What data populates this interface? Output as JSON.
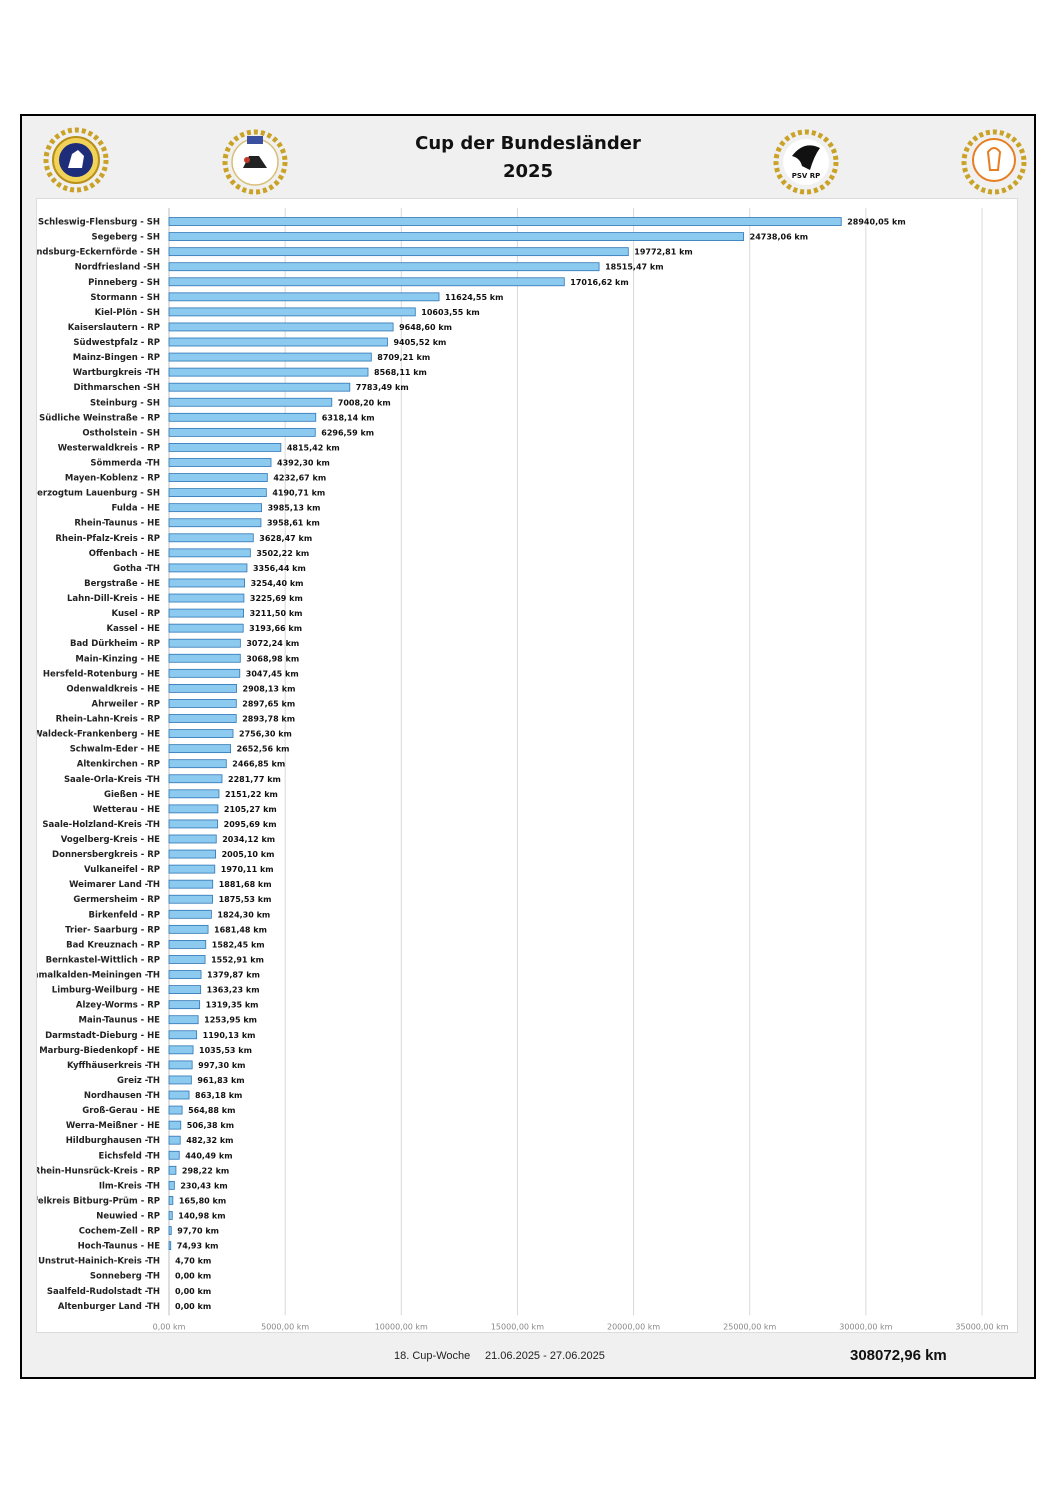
{
  "header": {
    "title": "Cup der Bundesländer",
    "year": "2025"
  },
  "logos": [
    {
      "name": "federation-emblem-icon"
    },
    {
      "name": "carriage-club-emblem-icon"
    },
    {
      "name": "psv-rp-emblem-icon"
    },
    {
      "name": "horse-association-emblem-icon"
    }
  ],
  "footer": {
    "week": "18. Cup-Woche",
    "dates": "21.06.2025 - 27.06.2025",
    "total": "308072,96 km"
  },
  "colors": {
    "bar_fill": "#8ccbef",
    "bar_stroke": "#2e75b6",
    "grid": "#d9d9d9"
  },
  "chart_data": {
    "type": "bar",
    "orientation": "horizontal",
    "xlim": [
      0,
      35000
    ],
    "x_ticks": [
      "0,00 km",
      "5000,00 km",
      "10000,00 km",
      "15000,00 km",
      "20000,00 km",
      "25000,00 km",
      "30000,00 km",
      "35000,00 km"
    ],
    "grid": true,
    "categories": [
      "Schleswig-Flensburg - SH",
      "Segeberg - SH",
      "Rendsburg-Eckernförde - SH",
      "Nordfriesland -SH",
      "Pinneberg - SH",
      "Stormann - SH",
      "Kiel-Plön - SH",
      "Kaiserslautern - RP",
      "Südwestpfalz - RP",
      "Mainz-Bingen - RP",
      "Wartburgkreis -TH",
      "Dithmarschen -SH",
      "Steinburg - SH",
      "Südliche Weinstraße - RP",
      "Ostholstein - SH",
      "Westerwaldkreis - RP",
      "Sömmerda -TH",
      "Mayen-Koblenz - RP",
      "Herzogtum Lauenburg - SH",
      "Fulda - HE",
      "Rhein-Taunus - HE",
      "Rhein-Pfalz-Kreis - RP",
      "Offenbach - HE",
      "Gotha -TH",
      "Bergstraße - HE",
      "Lahn-Dill-Kreis - HE",
      "Kusel - RP",
      "Kassel - HE",
      "Bad Dürkheim - RP",
      "Main-Kinzing - HE",
      "Hersfeld-Rotenburg - HE",
      "Odenwaldkreis - HE",
      "Ahrweiler - RP",
      "Rhein-Lahn-Kreis - RP",
      "Waldeck-Frankenberg - HE",
      "Schwalm-Eder - HE",
      "Altenkirchen - RP",
      "Saale-Orla-Kreis -TH",
      "Gießen - HE",
      "Wetterau - HE",
      "Saale-Holzland-Kreis -TH",
      "Vogelberg-Kreis - HE",
      "Donnersbergkreis - RP",
      "Vulkaneifel - RP",
      "Weimarer Land -TH",
      "Germersheim - RP",
      "Birkenfeld - RP",
      "Trier- Saarburg - RP",
      "Bad Kreuznach - RP",
      "Bernkastel-Wittlich - RP",
      "Schmalkalden-Meiningen -TH",
      "Limburg-Weilburg - HE",
      "Alzey-Worms - RP",
      "Main-Taunus - HE",
      "Darmstadt-Dieburg - HE",
      "Marburg-Biedenkopf - HE",
      "Kyffhäuserkreis -TH",
      "Greiz -TH",
      "Nordhausen -TH",
      "Groß-Gerau - HE",
      "Werra-Meißner - HE",
      "Hildburghausen -TH",
      "Eichsfeld -TH",
      "Rhein-Hunsrück-Kreis - RP",
      "Ilm-Kreis -TH",
      "Eifelkreis Bitburg-Prüm - RP",
      "Neuwied - RP",
      "Cochem-Zell - RP",
      "Hoch-Taunus - HE",
      "Unstrut-Hainich-Kreis -TH",
      "Sonneberg -TH",
      "Saalfeld-Rudolstadt -TH",
      "Altenburger Land -TH"
    ],
    "values": [
      28940.05,
      24738.06,
      19772.81,
      18515.47,
      17016.62,
      11624.55,
      10603.55,
      9648.6,
      9405.52,
      8709.21,
      8568.11,
      7783.49,
      7008.2,
      6318.14,
      6296.59,
      4815.42,
      4392.3,
      4232.67,
      4190.71,
      3985.13,
      3958.61,
      3628.47,
      3502.22,
      3356.44,
      3254.4,
      3225.69,
      3211.5,
      3193.66,
      3072.24,
      3068.98,
      3047.45,
      2908.13,
      2897.65,
      2893.78,
      2756.3,
      2652.56,
      2466.85,
      2281.77,
      2151.22,
      2105.27,
      2095.69,
      2034.12,
      2005.1,
      1970.11,
      1881.68,
      1875.53,
      1824.3,
      1681.48,
      1582.45,
      1552.91,
      1379.87,
      1363.23,
      1319.35,
      1253.95,
      1190.13,
      1035.53,
      997.3,
      961.83,
      863.18,
      564.88,
      506.38,
      482.32,
      440.49,
      298.22,
      230.43,
      165.8,
      140.98,
      97.7,
      74.93,
      4.7,
      0.0,
      0.0,
      0.0
    ],
    "value_labels": [
      "28940,05 km",
      "24738,06 km",
      "19772,81 km",
      "18515,47 km",
      "17016,62 km",
      "11624,55 km",
      "10603,55 km",
      "9648,60 km",
      "9405,52 km",
      "8709,21 km",
      "8568,11 km",
      "7783,49 km",
      "7008,20 km",
      "6318,14 km",
      "6296,59 km",
      "4815,42 km",
      "4392,30 km",
      "4232,67 km",
      "4190,71 km",
      "3985,13 km",
      "3958,61 km",
      "3628,47 km",
      "3502,22 km",
      "3356,44 km",
      "3254,40 km",
      "3225,69 km",
      "3211,50 km",
      "3193,66 km",
      "3072,24 km",
      "3068,98 km",
      "3047,45 km",
      "2908,13 km",
      "2897,65 km",
      "2893,78 km",
      "2756,30 km",
      "2652,56 km",
      "2466,85 km",
      "2281,77 km",
      "2151,22 km",
      "2105,27 km",
      "2095,69 km",
      "2034,12 km",
      "2005,10 km",
      "1970,11 km",
      "1881,68 km",
      "1875,53 km",
      "1824,30 km",
      "1681,48 km",
      "1582,45 km",
      "1552,91 km",
      "1379,87 km",
      "1363,23 km",
      "1319,35 km",
      "1253,95 km",
      "1190,13 km",
      "1035,53 km",
      "997,30 km",
      "961,83 km",
      "863,18 km",
      "564,88 km",
      "506,38 km",
      "482,32 km",
      "440,49 km",
      "298,22 km",
      "230,43 km",
      "165,80 km",
      "140,98 km",
      "97,70 km",
      "74,93 km",
      "4,70 km",
      "0,00 km",
      "0,00 km",
      "0,00 km"
    ]
  }
}
